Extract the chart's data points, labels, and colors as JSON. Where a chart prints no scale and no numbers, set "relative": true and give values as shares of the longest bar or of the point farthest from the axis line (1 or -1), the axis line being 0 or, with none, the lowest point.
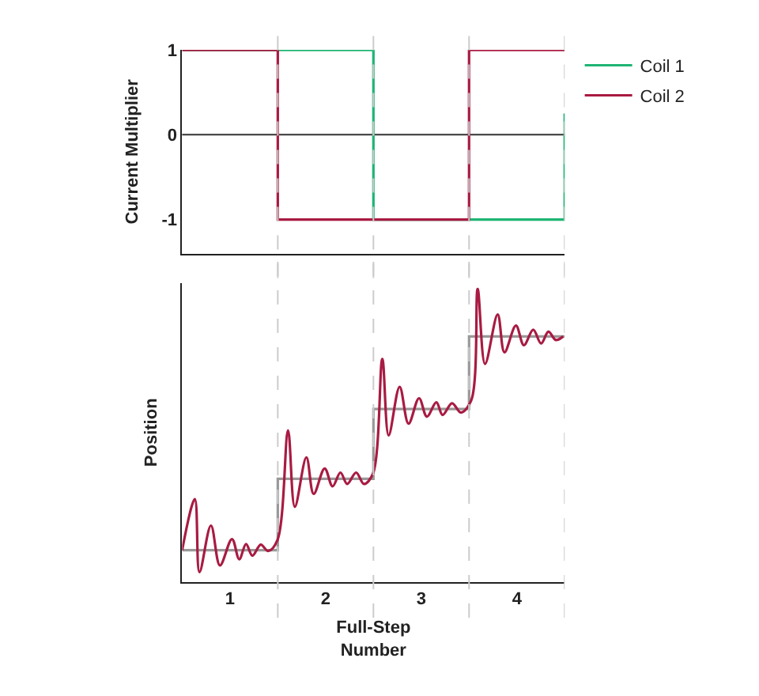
{
  "chart_data": [
    {
      "type": "step",
      "ylabel": "Current Multiplier",
      "x": [
        0.5,
        1.5,
        2.5,
        3.5,
        4.5
      ],
      "xlim": [
        0.5,
        4.5
      ],
      "xticks": [
        1,
        2,
        3,
        4
      ],
      "ylim": [
        -1.4,
        1
      ],
      "yticks": [
        -1,
        0,
        1
      ],
      "tick_labels": "y",
      "grid": false,
      "legend": "top right",
      "series": [
        {
          "name": "Coil 1",
          "color": "#1fb573",
          "values": [
            1,
            1,
            -1,
            -1,
            0.25
          ]
        },
        {
          "name": "Coil 2",
          "color": "#a81b42",
          "values": [
            1,
            -1,
            -1,
            1,
            1
          ]
        }
      ],
      "ref_lines": [
        {
          "axis": "y",
          "value": 0,
          "color": "#333333",
          "line_style": "solid"
        },
        {
          "axis": "x",
          "value": 1.5,
          "color": "#cccccc",
          "line_style": "dashed"
        },
        {
          "axis": "x",
          "value": 2.5,
          "color": "#cccccc",
          "line_style": "dashed"
        },
        {
          "axis": "x",
          "value": 3.5,
          "color": "#cccccc",
          "line_style": "dashed"
        },
        {
          "axis": "x",
          "value": 4.5,
          "color": "#cccccc",
          "line_style": "dashed"
        }
      ]
    },
    {
      "type": "line",
      "relative": true,
      "xlabel": "Full-Step Number",
      "ylabel": "Position",
      "xlim": [
        0.5,
        4.5
      ],
      "xticks": [
        1,
        2,
        3,
        4
      ],
      "tick_labels": "x",
      "grid": false,
      "legend": false,
      "series": [
        {
          "type": "step",
          "color": "#999999",
          "x": [
            0.5,
            1.5,
            2.5,
            3.5,
            4.5
          ],
          "values": [
            0.108,
            0.352,
            0.59,
            0.838,
            0.838
          ]
        },
        {
          "type": "line",
          "color": "#a81b42",
          "x": [
            0.5,
            0.632,
            0.681,
            0.801,
            0.895,
            1.021,
            1.097,
            1.168,
            1.234,
            1.322,
            1.399,
            1.497,
            1.607,
            1.678,
            1.799,
            1.875,
            1.99,
            2.073,
            2.155,
            2.226,
            2.319,
            2.401,
            2.495,
            2.593,
            2.659,
            2.774,
            2.867,
            2.977,
            3.059,
            3.158,
            3.223,
            3.322,
            3.415,
            3.525,
            3.59,
            3.667,
            3.799,
            3.87,
            3.99,
            4.073,
            4.171,
            4.253,
            4.33,
            4.407,
            4.484
          ],
          "values": [
            0.108,
            0.282,
            0.033,
            0.192,
            0.056,
            0.146,
            0.077,
            0.129,
            0.089,
            0.127,
            0.105,
            0.143,
            0.517,
            0.256,
            0.425,
            0.3,
            0.387,
            0.326,
            0.373,
            0.334,
            0.373,
            0.334,
            0.369,
            0.761,
            0.5,
            0.666,
            0.54,
            0.627,
            0.564,
            0.613,
            0.57,
            0.61,
            0.578,
            0.622,
            1.0,
            0.744,
            0.913,
            0.784,
            0.875,
            0.808,
            0.861,
            0.814,
            0.854,
            0.826,
            0.838
          ]
        }
      ],
      "ref_lines": [
        {
          "axis": "x",
          "value": 1.5,
          "color": "#cccccc",
          "line_style": "dashed"
        },
        {
          "axis": "x",
          "value": 2.5,
          "color": "#cccccc",
          "line_style": "dashed"
        },
        {
          "axis": "x",
          "value": 3.5,
          "color": "#cccccc",
          "line_style": "dashed"
        },
        {
          "axis": "x",
          "value": 4.5,
          "color": "#cccccc",
          "line_style": "dashed"
        }
      ]
    }
  ]
}
